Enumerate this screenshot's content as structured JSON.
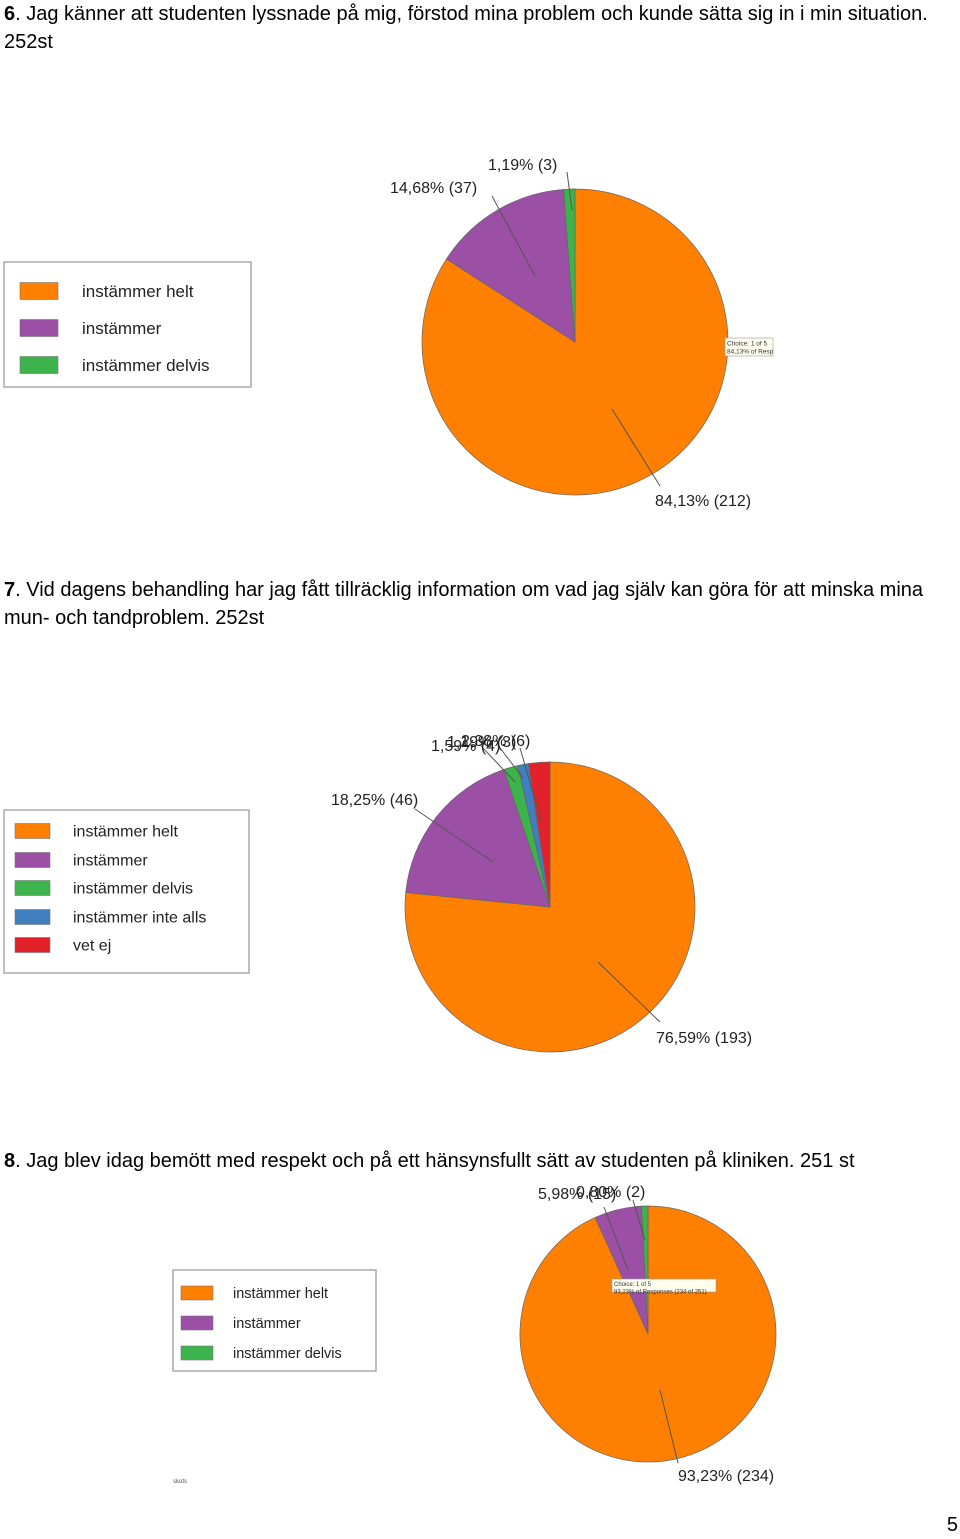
{
  "page_number": "5",
  "chart_data": [
    {
      "type": "pie",
      "question_number": "6",
      "question_text": ". Jag känner att studenten lyssnade på mig, förstod mina problem och kunde sätta sig in i min situation. 252st",
      "legend": [
        "instämmer helt",
        "instämmer",
        "instämmer delvis"
      ],
      "colors": [
        "#ff7f00",
        "#9b4fa5",
        "#3cb44b"
      ],
      "slices": [
        {
          "label": "instämmer helt",
          "percent": 84.13,
          "count": 212,
          "text": "84,13% (212)"
        },
        {
          "label": "instämmer",
          "percent": 14.68,
          "count": 37,
          "text": "14,68% (37)"
        },
        {
          "label": "instämmer delvis",
          "percent": 1.19,
          "count": 3,
          "text": "1,19% (3)"
        }
      ],
      "tooltip": [
        "Choice: 1 of 5",
        "84,13% of Resp"
      ]
    },
    {
      "type": "pie",
      "question_number": "7",
      "question_text": ". Vid dagens behandling har jag fått tillräcklig information om vad jag själv kan göra för att minska mina mun- och tandproblem. 252st",
      "legend": [
        "instämmer helt",
        "instämmer",
        "instämmer delvis",
        "instämmer inte alls",
        "vet ej"
      ],
      "colors": [
        "#ff7f00",
        "#9b4fa5",
        "#3cb44b",
        "#3f7fc0",
        "#e3212b"
      ],
      "slices": [
        {
          "label": "instämmer helt",
          "percent": 76.59,
          "count": 193,
          "text": "76,59% (193)"
        },
        {
          "label": "instämmer",
          "percent": 18.25,
          "count": 46,
          "text": "18,25% (46)"
        },
        {
          "label": "instämmer delvis",
          "percent": 1.59,
          "count": 4,
          "text": "1,59% (4)"
        },
        {
          "label": "instämmer inte alls",
          "percent": 1.19,
          "count": 3,
          "text": "1,19% (3)"
        },
        {
          "label": "vet ej",
          "percent": 2.38,
          "count": 6,
          "text": "2,38% (6)"
        }
      ]
    },
    {
      "type": "pie",
      "question_number": "8",
      "question_text": ". Jag blev idag bemött med respekt och på ett hänsynsfullt sätt av studenten på kliniken. 251 st",
      "legend": [
        "instämmer helt",
        "instämmer",
        "instämmer delvis"
      ],
      "colors": [
        "#ff7f00",
        "#9b4fa5",
        "#3cb44b"
      ],
      "slices": [
        {
          "label": "instämmer helt",
          "percent": 93.23,
          "count": 234,
          "text": "93,23% (234)"
        },
        {
          "label": "instämmer",
          "percent": 5.98,
          "count": 15,
          "text": "5,98% (15)"
        },
        {
          "label": "instämmer delvis",
          "percent": 0.8,
          "count": 2,
          "text": "0,80% (2)"
        }
      ],
      "tooltip": [
        "Choice: 1 of 5",
        "93,23% of Responses (234 of 251)"
      ],
      "footnote": "skots"
    }
  ]
}
